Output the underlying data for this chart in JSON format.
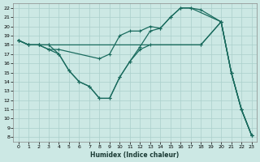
{
  "xlabel": "Humidex (Indice chaleur)",
  "bg_color": "#cce8e4",
  "line_color": "#1a6b5e",
  "grid_color": "#aacfcb",
  "xlim": [
    -0.5,
    23.5
  ],
  "ylim": [
    7.5,
    22.5
  ],
  "xticks": [
    0,
    1,
    2,
    3,
    4,
    5,
    6,
    7,
    8,
    9,
    10,
    11,
    12,
    13,
    14,
    15,
    16,
    17,
    18,
    19,
    20,
    21,
    22,
    23
  ],
  "yticks": [
    8,
    9,
    10,
    11,
    12,
    13,
    14,
    15,
    16,
    17,
    18,
    19,
    20,
    21,
    22
  ],
  "line1_x": [
    0,
    1,
    2,
    3,
    4,
    5,
    6,
    7,
    8,
    9,
    10,
    11,
    12,
    13,
    14,
    15,
    16,
    17,
    20,
    21,
    22,
    23
  ],
  "line1_y": [
    18.5,
    18.0,
    18.0,
    17.5,
    17.0,
    15.2,
    14.0,
    13.5,
    12.2,
    12.2,
    14.5,
    16.2,
    17.8,
    19.5,
    19.8,
    21.0,
    22.0,
    22.0,
    20.5,
    15.0,
    11.0,
    8.2
  ],
  "line2_x": [
    0,
    1,
    2,
    3,
    4,
    8,
    9,
    10,
    11,
    12,
    13,
    14,
    15,
    16,
    17,
    18,
    20,
    21,
    22,
    23
  ],
  "line2_y": [
    18.5,
    18.0,
    18.0,
    17.5,
    17.5,
    16.5,
    17.0,
    19.0,
    19.5,
    19.5,
    20.0,
    19.8,
    21.0,
    22.0,
    22.0,
    21.8,
    20.5,
    15.0,
    11.0,
    8.2
  ],
  "line3_x": [
    0,
    1,
    2,
    3,
    18,
    20,
    21,
    22,
    23
  ],
  "line3_y": [
    18.5,
    18.0,
    18.0,
    18.0,
    18.0,
    20.5,
    15.0,
    11.0,
    8.2
  ],
  "line4_x": [
    0,
    1,
    2,
    3,
    4,
    5,
    6,
    7,
    8,
    9,
    10,
    11,
    12,
    13,
    18,
    20,
    21,
    22,
    23
  ],
  "line4_y": [
    18.5,
    18.0,
    18.0,
    18.0,
    17.0,
    15.2,
    14.0,
    13.5,
    12.2,
    12.2,
    14.5,
    16.2,
    17.5,
    18.0,
    18.0,
    20.5,
    15.0,
    11.0,
    8.2
  ]
}
